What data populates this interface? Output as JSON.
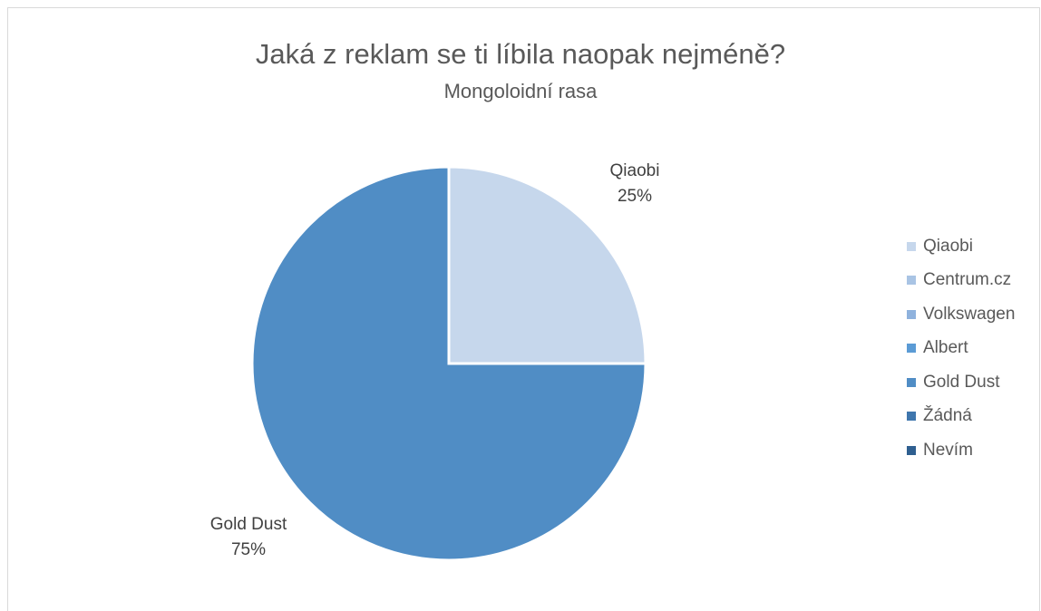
{
  "chart_data": {
    "type": "pie",
    "title": "Jaká z reklam se ti líbila naopak nejméně?",
    "subtitle": "Mongoloidní rasa",
    "categories": [
      "Qiaobi",
      "Centrum.cz",
      "Volkswagen",
      "Albert",
      "Gold Dust",
      "Žádná",
      "Nevím"
    ],
    "values": [
      25,
      0,
      0,
      0,
      75,
      0,
      0
    ],
    "colors": [
      "#c6d7ec",
      "#a9c4e4",
      "#8fb2dd",
      "#5b9bd5",
      "#508dc5",
      "#3f76ad",
      "#2f5f90"
    ],
    "data_labels": [
      {
        "name": "Qiaobi",
        "value": "25%"
      },
      {
        "name": "Gold Dust",
        "value": "75%"
      }
    ],
    "legend_position": "right"
  }
}
